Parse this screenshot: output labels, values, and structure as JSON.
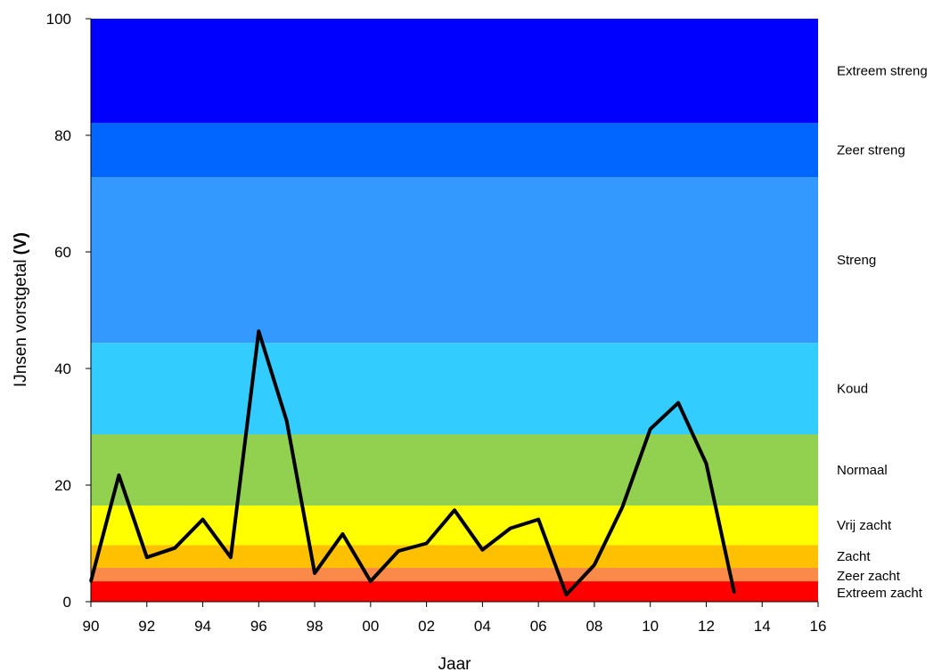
{
  "chart_data": {
    "type": "line",
    "ylabel": "IJnsen vorstgetal",
    "ylabel_unit": "(V)",
    "xlabel": "Jaar",
    "ylim": [
      0,
      100
    ],
    "xlim": [
      1990,
      2016
    ],
    "yticks": [
      0,
      20,
      40,
      60,
      80,
      100
    ],
    "xticks": [
      {
        "value": 1990,
        "label": "90"
      },
      {
        "value": 1992,
        "label": "92"
      },
      {
        "value": 1994,
        "label": "94"
      },
      {
        "value": 1996,
        "label": "96"
      },
      {
        "value": 1998,
        "label": "98"
      },
      {
        "value": 2000,
        "label": "00"
      },
      {
        "value": 2002,
        "label": "02"
      },
      {
        "value": 2004,
        "label": "04"
      },
      {
        "value": 2006,
        "label": "06"
      },
      {
        "value": 2008,
        "label": "08"
      },
      {
        "value": 2010,
        "label": "10"
      },
      {
        "value": 2012,
        "label": "12"
      },
      {
        "value": 2014,
        "label": "14"
      },
      {
        "value": 2016,
        "label": "16"
      }
    ],
    "bands": [
      {
        "label": "Extreem zacht",
        "from": 0,
        "to": 3.5,
        "color": "#ff0000"
      },
      {
        "label": "Zeer zacht",
        "from": 3.5,
        "to": 5.8,
        "color": "#fa8a4a"
      },
      {
        "label": "Zacht",
        "from": 5.8,
        "to": 9.7,
        "color": "#ffc000"
      },
      {
        "label": "Vrij zacht",
        "from": 9.7,
        "to": 16.5,
        "color": "#ffff00"
      },
      {
        "label": "Normaal",
        "from": 16.5,
        "to": 28.7,
        "color": "#92d050"
      },
      {
        "label": "Koud",
        "from": 28.7,
        "to": 44.4,
        "color": "#33ccff"
      },
      {
        "label": "Streng",
        "from": 44.4,
        "to": 72.8,
        "color": "#3399ff"
      },
      {
        "label": "Zeer streng",
        "from": 72.8,
        "to": 82.1,
        "color": "#0066ff"
      },
      {
        "label": "Extreem streng",
        "from": 82.1,
        "to": 100,
        "color": "#0000ff"
      }
    ],
    "series": [
      {
        "color": "#000000",
        "x": [
          1990,
          1991,
          1992,
          1993,
          1994,
          1995,
          1996,
          1997,
          1998,
          1999,
          2000,
          2001,
          2002,
          2003,
          2004,
          2005,
          2006,
          2007,
          2008,
          2009,
          2010,
          2011,
          2012,
          2013
        ],
        "values": [
          3.5,
          21.7,
          7.6,
          9.2,
          14.1,
          7.6,
          46.4,
          31.0,
          4.9,
          11.6,
          3.5,
          8.7,
          10.0,
          15.7,
          8.9,
          12.6,
          14.1,
          1.2,
          6.3,
          16.2,
          29.6,
          34.1,
          23.7,
          1.6
        ]
      }
    ]
  }
}
